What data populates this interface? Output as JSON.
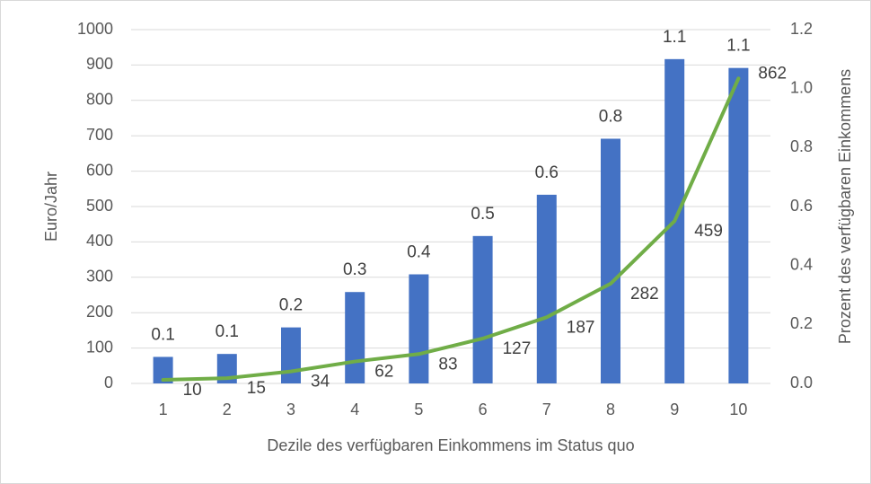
{
  "chart_data": {
    "type": "bar-line",
    "x_label": "Dezile des verfügbaren Einkommens im Status quo",
    "y_label": "Euro/Jahr",
    "y2_label": "Prozent des verfügbaren Einkommens",
    "categories": [
      "1",
      "2",
      "3",
      "4",
      "5",
      "6",
      "7",
      "8",
      "9",
      "10"
    ],
    "ylim": [
      0,
      1000
    ],
    "yticks": [
      0,
      100,
      200,
      300,
      400,
      500,
      600,
      700,
      800,
      900,
      1000
    ],
    "y2lim": [
      0,
      1.2
    ],
    "y2ticks": [
      {
        "value": 0,
        "label": "0.0"
      },
      0.2,
      0.4,
      0.6,
      0.8,
      {
        "value": 1,
        "label": "1.0"
      },
      1.2
    ],
    "grid": true,
    "series": [
      {
        "type": "bar",
        "axis": "y2",
        "color": "#4472c4",
        "values": [
          0.09,
          0.1,
          0.19,
          0.31,
          0.37,
          0.5,
          0.64,
          0.83,
          1.1,
          1.07
        ],
        "value_labels": [
          "0.1",
          "0.1",
          "0.2",
          "0.3",
          "0.4",
          "0.5",
          "0.6",
          "0.8",
          "1.1",
          "1.1"
        ]
      },
      {
        "type": "line",
        "axis": "y",
        "color": "#70ad47",
        "values": [
          10,
          15,
          34,
          62,
          83,
          127,
          187,
          282,
          459,
          862
        ]
      }
    ]
  }
}
